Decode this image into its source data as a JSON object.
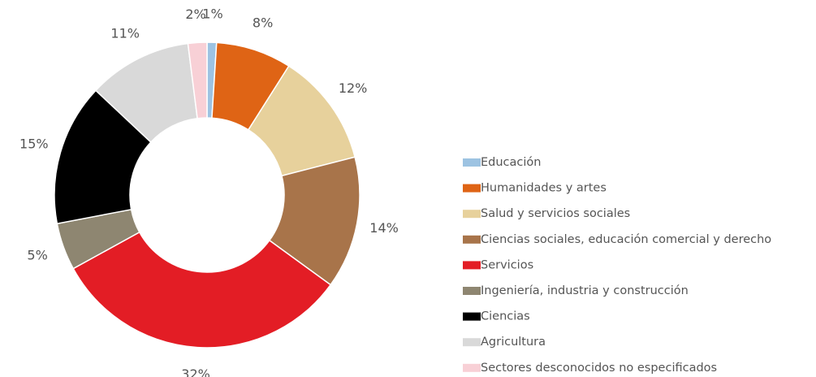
{
  "chart_data": {
    "type": "donut",
    "categories": [
      "Educación",
      "Humanidades y artes",
      "Salud y servicios sociales",
      "Ciencias sociales, educación comercial y derecho",
      "Servicios",
      "Ingeniería, industria y construcción",
      "Ciencias",
      "Agricultura",
      "Sectores desconocidos no especificados"
    ],
    "values": [
      1,
      8,
      12,
      14,
      32,
      5,
      15,
      11,
      2
    ],
    "value_labels": [
      "1%",
      "8%",
      "12%",
      "14%",
      "32%",
      "5%",
      "15%",
      "11%",
      "2%"
    ],
    "colors": [
      "#9dc3e2",
      "#df6415",
      "#e7d19c",
      "#a8744a",
      "#e31d25",
      "#8e8671",
      "#000000",
      "#d9d9d9",
      "#f8d0d6"
    ],
    "legend": "right"
  }
}
